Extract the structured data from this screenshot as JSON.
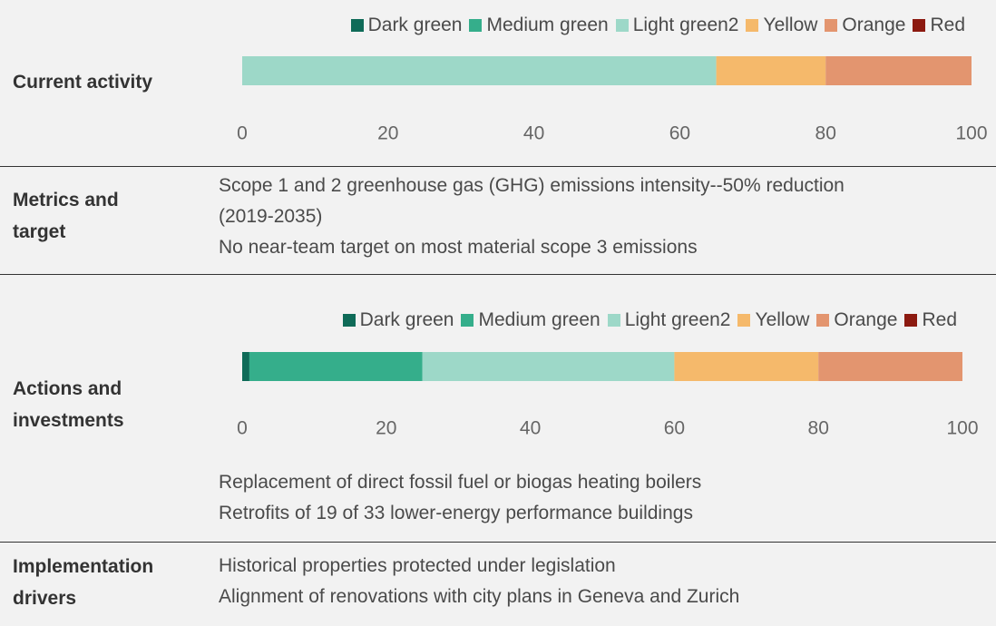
{
  "rows": [
    {
      "label": "Current activity",
      "chart": {
        "type": "bar",
        "orientation": "horizontal",
        "stacked": true,
        "series": [
          {
            "name": "Dark green",
            "color": "#0f6b58",
            "values": [
              0
            ]
          },
          {
            "name": "Medium green",
            "color": "#35ae8b",
            "values": [
              0
            ]
          },
          {
            "name": "Light green2",
            "color": "#9dd8c8",
            "values": [
              65
            ]
          },
          {
            "name": "Yellow",
            "color": "#f5b96b",
            "values": [
              15
            ]
          },
          {
            "name": "Orange",
            "color": "#e3956f",
            "values": [
              20
            ]
          },
          {
            "name": "Red",
            "color": "#8c1a10",
            "values": [
              0
            ]
          }
        ],
        "xlim": [
          0,
          100
        ],
        "xticks": [
          0,
          20,
          40,
          60,
          80,
          100
        ]
      }
    },
    {
      "label": "Metrics and target",
      "lines": [
        "Scope 1 and 2 greenhouse gas (GHG) emissions intensity--50% reduction (2019-2035)",
        "No near-team target on most material scope 3 emissions"
      ]
    },
    {
      "label": "Actions and investments",
      "chart": {
        "type": "bar",
        "orientation": "horizontal",
        "stacked": true,
        "series": [
          {
            "name": "Dark green",
            "color": "#0f6b58",
            "values": [
              1
            ]
          },
          {
            "name": "Medium green",
            "color": "#35ae8b",
            "values": [
              24
            ]
          },
          {
            "name": "Light green2",
            "color": "#9dd8c8",
            "values": [
              35
            ]
          },
          {
            "name": "Yellow",
            "color": "#f5b96b",
            "values": [
              20
            ]
          },
          {
            "name": "Orange",
            "color": "#e3956f",
            "values": [
              20
            ]
          },
          {
            "name": "Red",
            "color": "#8c1a10",
            "values": [
              0
            ]
          }
        ],
        "xlim": [
          0,
          100
        ],
        "xticks": [
          0,
          20,
          40,
          60,
          80,
          100
        ]
      },
      "lines": [
        "Replacement of direct fossil fuel or biogas heating boilers",
        "Retrofits of 19 of 33 lower-energy performance buildings"
      ]
    },
    {
      "label": "Implementation drivers",
      "lines": [
        "Historical properties protected under legislation",
        "Alignment of renovations with city plans in Geneva and Zurich"
      ]
    }
  ]
}
